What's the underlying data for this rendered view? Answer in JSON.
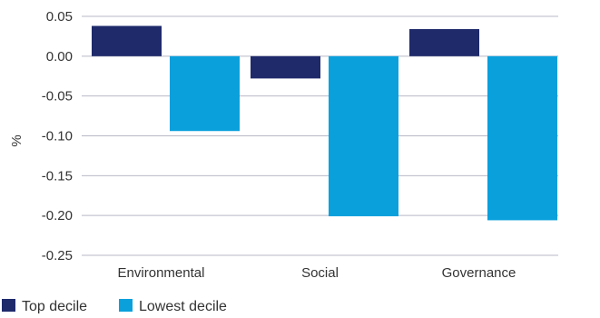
{
  "chart_data": {
    "type": "bar",
    "categories": [
      "Environmental",
      "Social",
      "Governance"
    ],
    "series": [
      {
        "name": "Top decile",
        "values": [
          0.038,
          -0.028,
          0.034
        ],
        "color": "#1f2a6b"
      },
      {
        "name": "Lowest decile",
        "values": [
          -0.094,
          -0.201,
          -0.206
        ],
        "color": "#0aa0dc"
      }
    ],
    "ylabel": "%",
    "ylim": [
      -0.25,
      0.05
    ],
    "yticks": [
      "0.05",
      "0.00",
      "-0.05",
      "-0.10",
      "-0.15",
      "-0.20",
      "-0.25"
    ],
    "grid": true,
    "legend_position": "bottom-left"
  }
}
